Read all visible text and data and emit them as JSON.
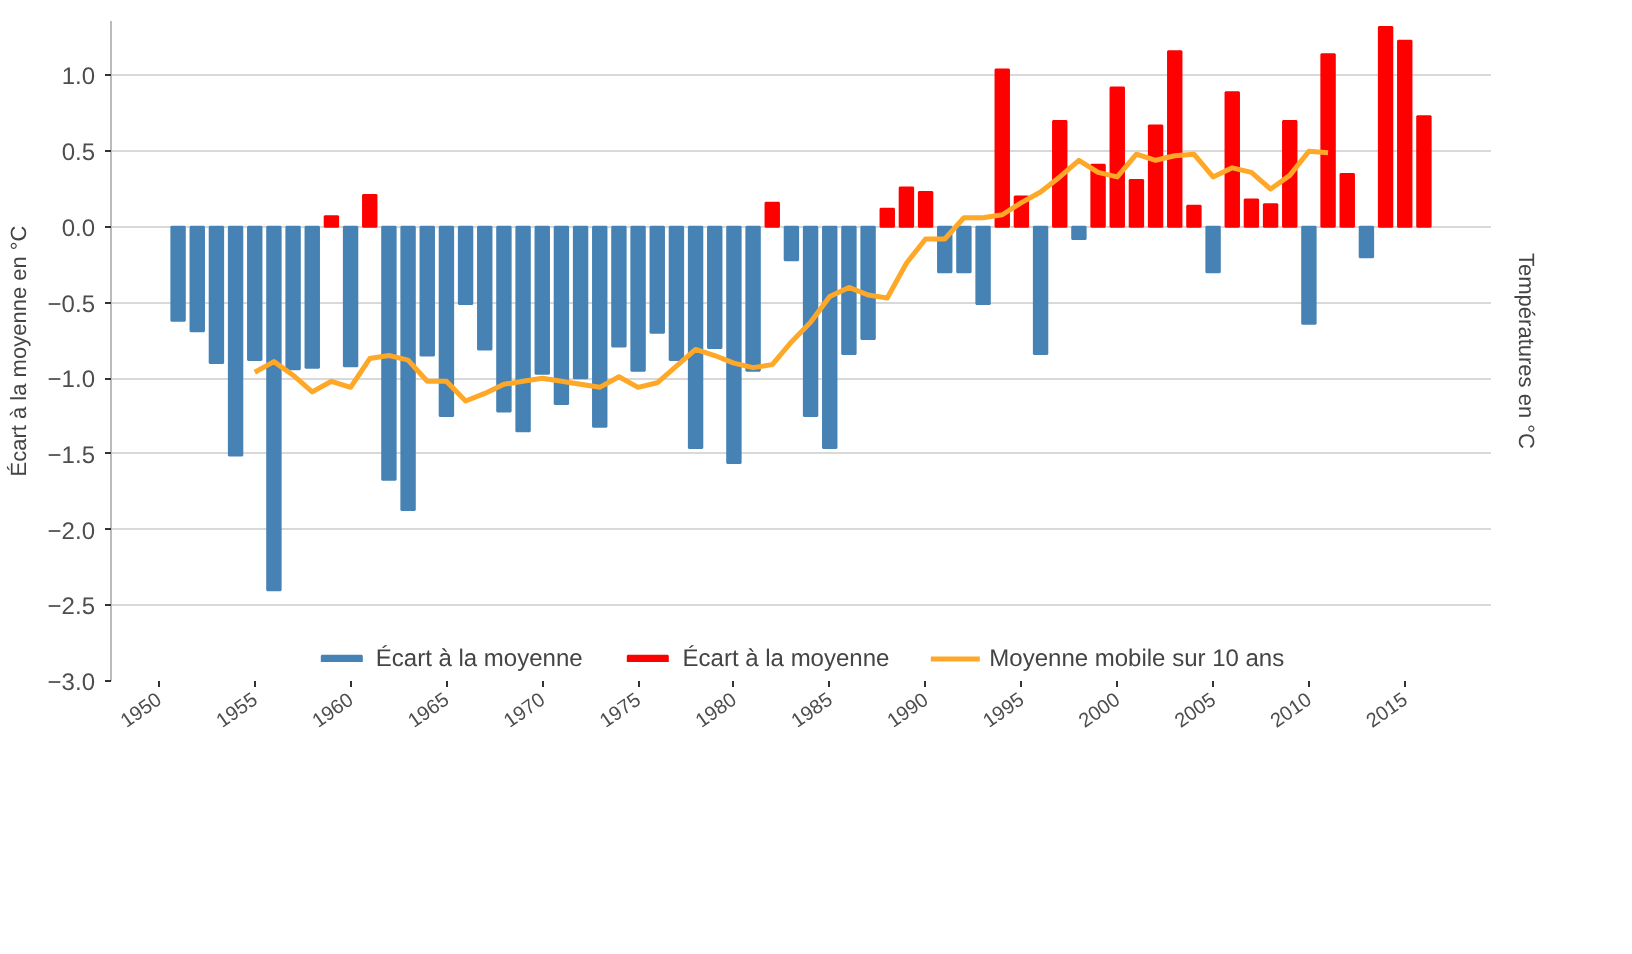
{
  "chart_data": {
    "type": "bar",
    "ylabel": "Écart à la moyenne en °C",
    "y2label": "Températures en °C",
    "x": [
      1951,
      1952,
      1953,
      1954,
      1955,
      1956,
      1957,
      1958,
      1959,
      1960,
      1961,
      1962,
      1963,
      1964,
      1965,
      1966,
      1967,
      1968,
      1969,
      1970,
      1971,
      1972,
      1973,
      1974,
      1975,
      1976,
      1977,
      1978,
      1979,
      1980,
      1981,
      1982,
      1983,
      1984,
      1985,
      1986,
      1987,
      1988,
      1989,
      1990,
      1991,
      1992,
      1993,
      1994,
      1995,
      1996,
      1997,
      1998,
      1999,
      2000,
      2001,
      2002,
      2003,
      2004,
      2005,
      2006,
      2007,
      2008,
      2009,
      2010,
      2011,
      2012,
      2013,
      2014,
      2015,
      2016
    ],
    "series": [
      {
        "name": "Écart à la moyenne",
        "color": "#4682b4",
        "values": [
          -0.62,
          -0.69,
          -0.9,
          -1.51,
          -0.88,
          -2.4,
          -0.94,
          -0.93,
          null,
          -0.92,
          null,
          -1.67,
          -1.87,
          -0.85,
          -1.25,
          -0.51,
          -0.81,
          -1.22,
          -1.35,
          -0.97,
          -1.17,
          -1.0,
          -1.32,
          -0.79,
          -0.95,
          -0.7,
          -0.88,
          -1.46,
          -0.8,
          -1.56,
          -0.95,
          null,
          -0.22,
          -1.25,
          -1.46,
          -0.84,
          -0.74,
          null,
          null,
          null,
          -0.3,
          -0.3,
          -0.51,
          null,
          null,
          -0.84,
          null,
          -0.08,
          null,
          null,
          null,
          null,
          null,
          null,
          -0.3,
          null,
          null,
          null,
          null,
          -0.64,
          null,
          null,
          -0.2,
          null,
          null,
          null
        ]
      },
      {
        "name": "Écart à la moyenne",
        "color": "#ff0000",
        "values": [
          null,
          null,
          null,
          null,
          null,
          null,
          null,
          null,
          0.07,
          null,
          0.21,
          null,
          null,
          null,
          null,
          null,
          null,
          null,
          null,
          null,
          null,
          null,
          null,
          null,
          null,
          null,
          null,
          null,
          null,
          null,
          null,
          0.16,
          null,
          null,
          null,
          null,
          null,
          0.12,
          0.26,
          0.23,
          null,
          null,
          null,
          1.04,
          0.2,
          null,
          0.7,
          null,
          0.41,
          0.92,
          0.31,
          0.67,
          1.16,
          0.14,
          null,
          0.89,
          0.18,
          0.15,
          0.7,
          null,
          1.14,
          0.35,
          null,
          1.32,
          1.23,
          0.73
        ]
      },
      {
        "name": "Moyenne mobile sur 10 ans",
        "color": "#ffa726",
        "type": "line",
        "x": [
          1955,
          1956,
          1957,
          1958,
          1959,
          1960,
          1961,
          1962,
          1963,
          1964,
          1965,
          1966,
          1967,
          1968,
          1969,
          1970,
          1971,
          1972,
          1973,
          1974,
          1975,
          1976,
          1977,
          1978,
          1979,
          1980,
          1981,
          1982,
          1983,
          1984,
          1985,
          1986,
          1987,
          1988,
          1989,
          1990,
          1991,
          1992,
          1993,
          1994,
          1995,
          1996,
          1997,
          1998,
          1999,
          2000,
          2001,
          2002,
          2003,
          2004,
          2005,
          2006,
          2007,
          2008,
          2009,
          2010,
          2011
        ],
        "values": [
          -0.96,
          -0.89,
          -0.98,
          -1.09,
          -1.02,
          -1.06,
          -0.87,
          -0.85,
          -0.88,
          -1.02,
          -1.02,
          -1.15,
          -1.1,
          -1.04,
          -1.02,
          -1.0,
          -1.02,
          -1.04,
          -1.06,
          -0.99,
          -1.06,
          -1.03,
          -0.92,
          -0.81,
          -0.85,
          -0.9,
          -0.93,
          -0.91,
          -0.76,
          -0.63,
          -0.46,
          -0.4,
          -0.45,
          -0.47,
          -0.24,
          -0.08,
          -0.08,
          0.06,
          0.06,
          0.08,
          0.16,
          0.23,
          0.33,
          0.44,
          0.36,
          0.33,
          0.48,
          0.44,
          0.47,
          0.48,
          0.33,
          0.39,
          0.36,
          0.25,
          0.34,
          0.5,
          0.49
        ]
      }
    ],
    "xlim": [
      1947.5,
      2019.5
    ],
    "xticks": [
      1950,
      1955,
      1960,
      1965,
      1970,
      1975,
      1980,
      1985,
      1990,
      1995,
      2000,
      2005,
      2010,
      2015
    ],
    "ylim": [
      -3.0,
      1.36
    ],
    "yticks": [
      {
        "value": -3.0,
        "label": "−3.0"
      },
      {
        "value": -2.5,
        "label": "−2.5"
      },
      {
        "value": -2.0,
        "label": "−2.0"
      },
      {
        "value": -1.5,
        "label": "−1.5"
      },
      {
        "value": -1.0,
        "label": "−1.0"
      },
      {
        "value": -0.5,
        "label": "−0.5"
      },
      {
        "value": 0.0,
        "label": "0.0"
      },
      {
        "value": 0.5,
        "label": "0.5"
      },
      {
        "value": 1.0,
        "label": "1.0"
      }
    ],
    "grid": "y",
    "legend": "bottom"
  }
}
